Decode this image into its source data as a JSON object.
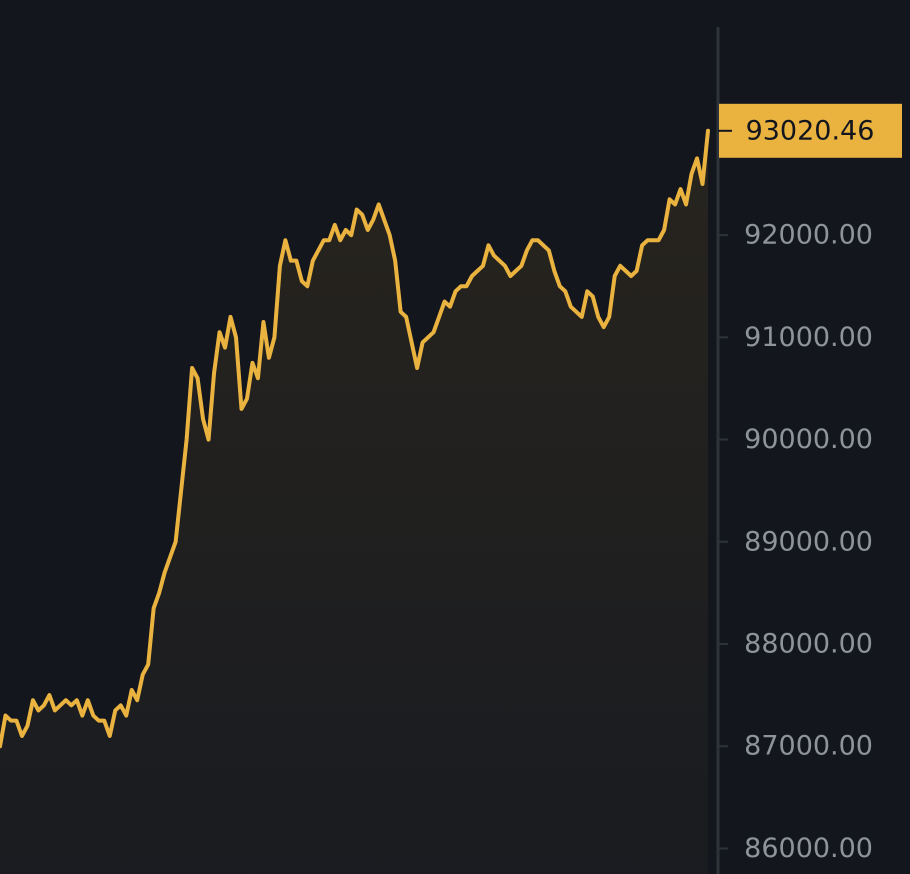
{
  "chart_data": {
    "type": "area",
    "title": "",
    "xlabel": "",
    "ylabel": "",
    "ylim": [
      85750,
      94300
    ],
    "y_ticks": [
      86000,
      87000,
      88000,
      89000,
      90000,
      91000,
      92000
    ],
    "y_tick_labels": [
      "86000.00",
      "87000.00",
      "88000.00",
      "89000.00",
      "90000.00",
      "91000.00",
      "92000.00"
    ],
    "last_price": 93020.46,
    "last_price_label": "93020.46",
    "grid": false,
    "colors": {
      "line": "#eab340",
      "background": "#13161d",
      "axis": "#2e323b",
      "tick_text": "#8e939c",
      "tag_text": "#13161d"
    },
    "series": [
      {
        "values": [
          87000,
          87300,
          87250,
          87250,
          87100,
          87200,
          87450,
          87350,
          87400,
          87500,
          87350,
          87400,
          87450,
          87400,
          87450,
          87300,
          87450,
          87300,
          87250,
          87250,
          87100,
          87350,
          87400,
          87300,
          87550,
          87450,
          87700,
          87800,
          88350,
          88500,
          88700,
          88850,
          89000,
          89500,
          90000,
          90700,
          90600,
          90200,
          90000,
          90650,
          91050,
          90900,
          91200,
          91000,
          90300,
          90400,
          90750,
          90600,
          91150,
          90800,
          91000,
          91700,
          91950,
          91750,
          91750,
          91550,
          91500,
          91750,
          91850,
          91950,
          91950,
          92100,
          91950,
          92050,
          92000,
          92250,
          92200,
          92050,
          92150,
          92300,
          92150,
          92000,
          91750,
          91250,
          91200,
          90950,
          90700,
          90950,
          91000,
          91050,
          91200,
          91350,
          91300,
          91450,
          91500,
          91500,
          91600,
          91650,
          91700,
          91900,
          91800,
          91750,
          91700,
          91600,
          91650,
          91700,
          91850,
          91950,
          91950,
          91900,
          91850,
          91650,
          91500,
          91450,
          91300,
          91250,
          91200,
          91450,
          91400,
          91200,
          91100,
          91200,
          91600,
          91700,
          91650,
          91600,
          91650,
          91900,
          91950,
          91950,
          91950,
          92050,
          92350,
          92300,
          92450,
          92300,
          92600,
          92750,
          92500,
          93020.46
        ]
      }
    ]
  }
}
